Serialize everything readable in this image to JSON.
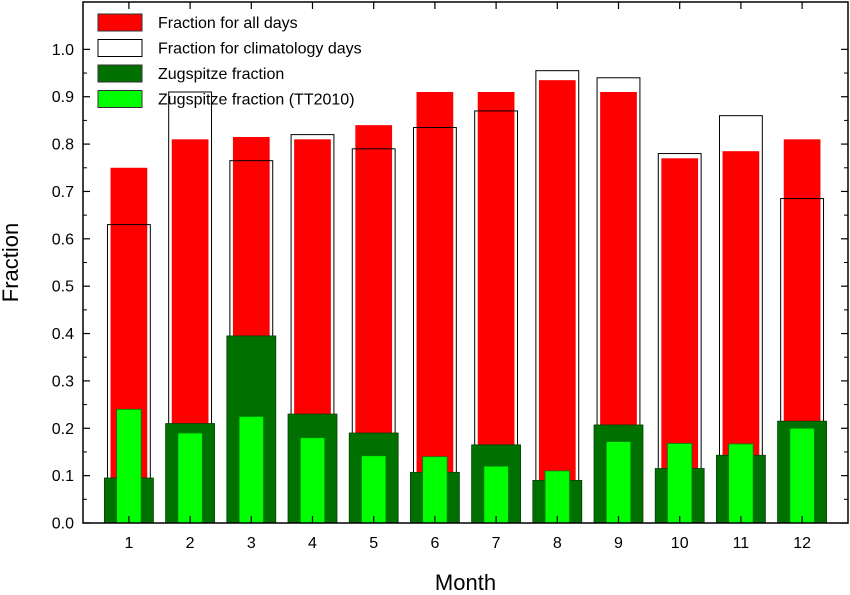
{
  "chart_data": {
    "type": "bar",
    "title": "",
    "xlabel": "Month",
    "ylabel": "Fraction",
    "ylim": [
      0,
      1.1
    ],
    "yticks": [
      "0.0",
      "0.1",
      "0.2",
      "0.3",
      "0.4",
      "0.5",
      "0.6",
      "0.7",
      "0.8",
      "0.9",
      "1.0"
    ],
    "categories": [
      "1",
      "2",
      "3",
      "4",
      "5",
      "6",
      "7",
      "8",
      "9",
      "10",
      "11",
      "12"
    ],
    "grid": false,
    "legend_position": "top-left",
    "series": [
      {
        "name": "Fraction for all days",
        "color": "#ff0000",
        "values": [
          0.75,
          0.81,
          0.815,
          0.81,
          0.84,
          0.91,
          0.91,
          0.935,
          0.91,
          0.77,
          0.785,
          0.81
        ]
      },
      {
        "name": "Fraction for climatology days",
        "color": "#ffffff",
        "values": [
          0.63,
          0.91,
          0.765,
          0.82,
          0.79,
          0.835,
          0.87,
          0.955,
          0.94,
          0.78,
          0.86,
          0.685
        ]
      },
      {
        "name": "Zugspitze fraction",
        "color": "#007000",
        "values": [
          0.095,
          0.21,
          0.395,
          0.23,
          0.19,
          0.107,
          0.165,
          0.09,
          0.207,
          0.115,
          0.143,
          0.215
        ]
      },
      {
        "name": "Zugspitze fraction (TT2010)",
        "color": "#00ff00",
        "values": [
          0.24,
          0.19,
          0.225,
          0.18,
          0.142,
          0.14,
          0.12,
          0.11,
          0.172,
          0.168,
          0.167,
          0.2
        ]
      }
    ]
  }
}
